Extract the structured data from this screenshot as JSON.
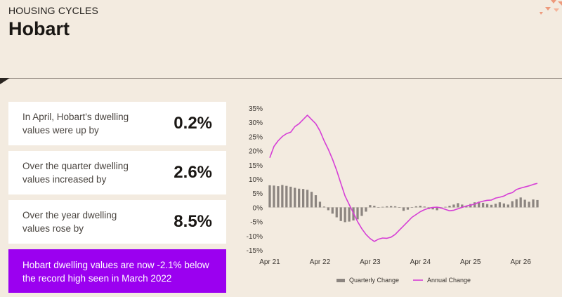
{
  "header": {
    "kicker": "HOUSING CYCLES",
    "title": "Hobart"
  },
  "cards": [
    {
      "label": "In April, Hobart's dwelling values were up by",
      "value": "0.2%"
    },
    {
      "label": "Over the quarter dwelling values increased by",
      "value": "2.6%"
    },
    {
      "label": "Over the year dwelling values rose by",
      "value": "8.5%"
    }
  ],
  "callout": "Hobart dwelling values are now -2.1% below the record high seen in March 2022",
  "colors": {
    "background": "#f3ebe0",
    "accent": "#9b00f0",
    "bar": "#8c8580",
    "line": "#d63fd6"
  },
  "chart_data": {
    "type": "bar+line",
    "x_start": "Apr 21",
    "x_ticks": [
      "Apr 21",
      "Apr 22",
      "Apr 23",
      "Apr 24",
      "Apr 25",
      "Apr 26"
    ],
    "ylim": [
      -15,
      35
    ],
    "y_ticks": [
      35,
      30,
      25,
      20,
      15,
      10,
      5,
      0,
      -5,
      -10,
      -15
    ],
    "y_tick_labels": [
      "35%",
      "30%",
      "25%",
      "20%",
      "15%",
      "10%",
      "5%",
      "0%",
      "-5%",
      "-10%",
      "-15%"
    ],
    "legend_position": "bottom",
    "series": [
      {
        "name": "Quarterly Change",
        "type": "bar",
        "values": [
          7.8,
          7.7,
          7.5,
          7.9,
          7.6,
          7.3,
          6.9,
          6.6,
          6.5,
          6.2,
          5.5,
          4.3,
          2.0,
          0.3,
          -1.0,
          -2.2,
          -3.5,
          -4.8,
          -5.2,
          -5.0,
          -4.6,
          -4.2,
          -3.0,
          -1.5,
          0.8,
          0.6,
          0.1,
          0.2,
          0.4,
          0.5,
          0.4,
          -0.1,
          -1.2,
          -0.8,
          0.1,
          0.4,
          0.6,
          0.3,
          -0.6,
          -0.7,
          -1.0,
          -0.4,
          0.2,
          0.6,
          1.0,
          1.5,
          1.0,
          0.4,
          1.2,
          1.8,
          2.0,
          1.6,
          1.2,
          0.9,
          1.3,
          1.8,
          1.4,
          1.0,
          2.2,
          2.9,
          3.5,
          2.7,
          2.0,
          2.8,
          2.6
        ]
      },
      {
        "name": "Annual Change",
        "type": "line",
        "values": [
          17.5,
          21.5,
          23.5,
          25.0,
          26.0,
          26.5,
          28.5,
          29.5,
          31.0,
          32.5,
          31.0,
          29.5,
          27.0,
          23.5,
          20.5,
          17.0,
          13.0,
          8.5,
          4.0,
          1.0,
          -2.0,
          -5.0,
          -7.5,
          -9.5,
          -11.0,
          -12.0,
          -11.2,
          -10.8,
          -10.9,
          -10.5,
          -9.5,
          -8.0,
          -6.5,
          -5.0,
          -3.5,
          -2.5,
          -1.5,
          -0.8,
          -0.3,
          0.0,
          0.1,
          -0.2,
          -0.7,
          -1.2,
          -1.0,
          -0.5,
          0.0,
          0.5,
          0.8,
          1.2,
          1.8,
          2.2,
          2.5,
          2.6,
          3.3,
          3.6,
          4.0,
          4.8,
          5.2,
          6.3,
          6.8,
          7.2,
          7.6,
          8.1,
          8.5
        ]
      }
    ]
  }
}
